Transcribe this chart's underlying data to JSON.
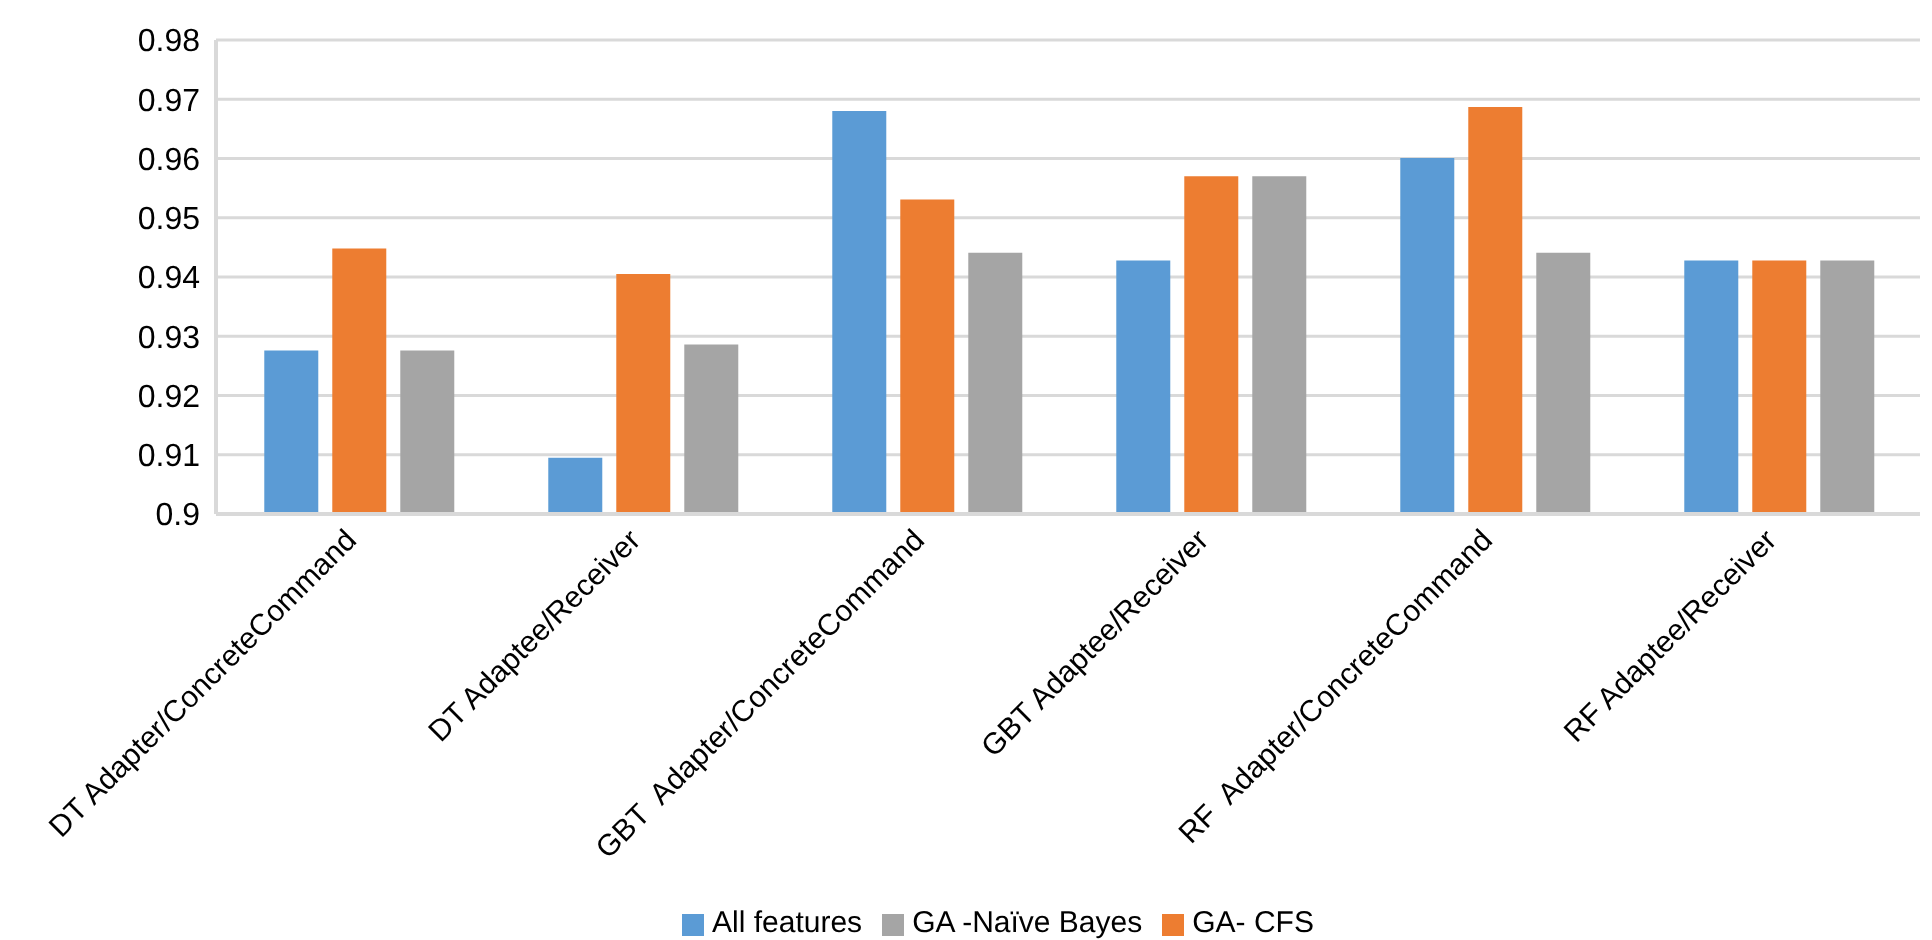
{
  "chart_data": {
    "type": "bar",
    "categories": [
      "DT Adapter/ConcreteCommand",
      "DT Adaptee/Receiver",
      "GBT  Adapter/ConcreteCommand",
      "GBT Adaptee/Receiver",
      "RF  Adapter/ConcreteCommand",
      "RF Adaptee/Receiver"
    ],
    "series": [
      {
        "name": "All features",
        "color": "#5b9bd5",
        "values": [
          0.9276,
          0.9095,
          0.968,
          0.9428,
          0.9601,
          0.9428
        ]
      },
      {
        "name": "GA- CFS",
        "color": "#ed7d31",
        "values": [
          0.9448,
          0.9405,
          0.9531,
          0.957,
          0.9687,
          0.9428
        ]
      },
      {
        "name": "GA -Naïve Bayes",
        "color": "#a5a5a5",
        "values": [
          0.9276,
          0.9286,
          0.9441,
          0.957,
          0.9441,
          0.9428
        ]
      }
    ],
    "ylim": [
      0.9,
      0.98
    ],
    "yticks": [
      0.9,
      0.91,
      0.92,
      0.93,
      0.94,
      0.95,
      0.96,
      0.97,
      0.98
    ],
    "grid": "y",
    "legend": "bottom"
  }
}
